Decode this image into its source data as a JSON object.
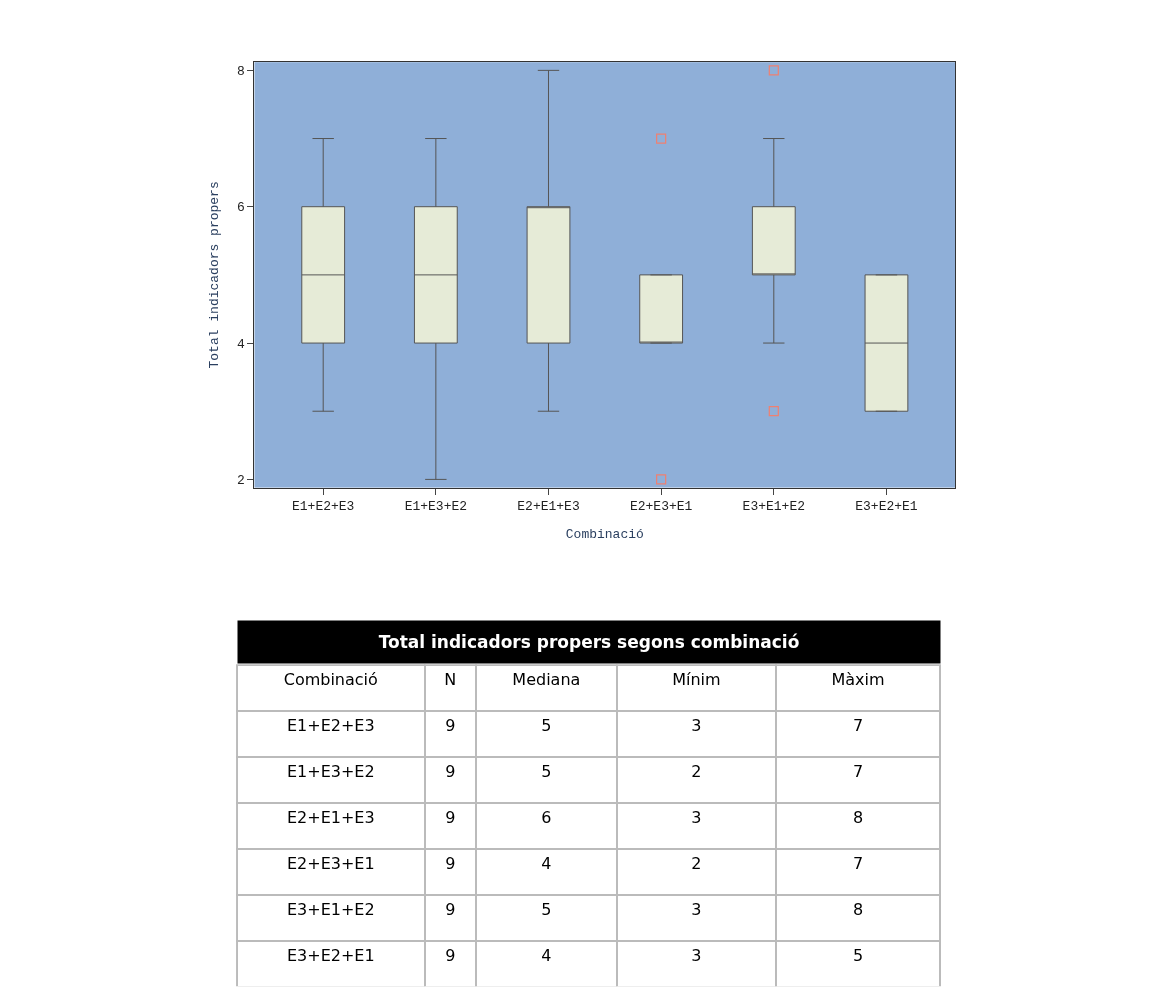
{
  "chart_data": [
    {
      "type": "box",
      "xlabel": "Combinació",
      "ylabel": "Total indicadors propers",
      "categories": [
        "E1+E2+E3",
        "E1+E3+E2",
        "E2+E1+E3",
        "E2+E3+E1",
        "E3+E1+E2",
        "E3+E2+E1"
      ],
      "boxes": [
        {
          "low": 3,
          "q1": 4,
          "median": 5,
          "q3": 6,
          "high": 7
        },
        {
          "low": 2,
          "q1": 4,
          "median": 5,
          "q3": 6,
          "high": 7
        },
        {
          "low": 3,
          "q1": 4,
          "median": 6,
          "q3": 6,
          "high": 8
        },
        {
          "low": 4,
          "q1": 4,
          "median": 4,
          "q3": 5,
          "high": 5,
          "outliers": [
            7,
            2
          ]
        },
        {
          "low": 4,
          "q1": 5,
          "median": 5,
          "q3": 6,
          "high": 7,
          "outliers": [
            8,
            3
          ]
        },
        {
          "low": 3,
          "q1": 3,
          "median": 4,
          "q3": 5,
          "high": 5
        }
      ],
      "color": "#e6ebd7",
      "ylim": [
        1.88,
        8.12
      ],
      "yticks": [
        2,
        4,
        6,
        8
      ],
      "grid": false,
      "marker": "square"
    },
    {
      "type": "other",
      "title": "Total indicadors propers segons combinació",
      "xlabel": "Combinació",
      "categories": [
        "E1+E2+E3",
        "E1+E3+E2",
        "E2+E1+E3",
        "E2+E3+E1",
        "E3+E1+E2",
        "E3+E2+E1"
      ],
      "series": [
        {
          "name": "N",
          "values": [
            9,
            9,
            9,
            9,
            9,
            9
          ]
        },
        {
          "name": "Mediana",
          "values": [
            5,
            5,
            6,
            4,
            5,
            4
          ]
        },
        {
          "name": "Mínim",
          "values": [
            3,
            2,
            3,
            2,
            3,
            3
          ]
        },
        {
          "name": "Màxim",
          "values": [
            7,
            7,
            8,
            7,
            8,
            5
          ]
        }
      ],
      "data_labels": true
    }
  ]
}
